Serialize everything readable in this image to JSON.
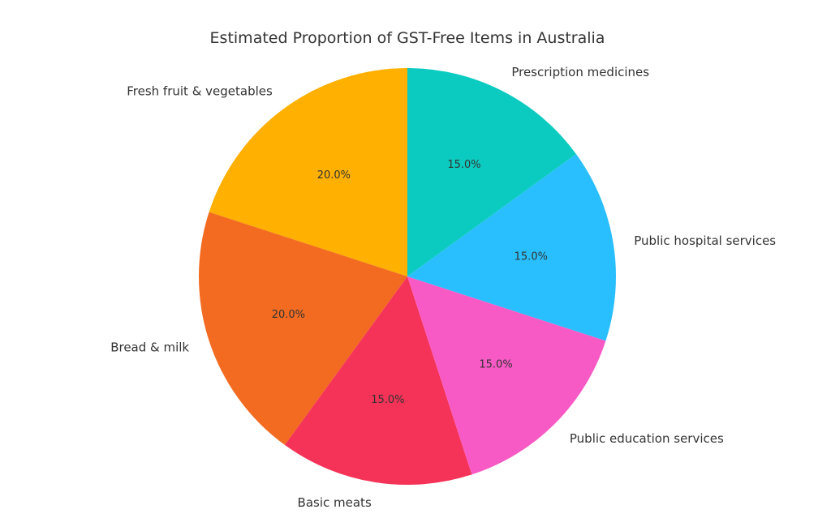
{
  "chart_data": {
    "type": "pie",
    "title": "Estimated Proportion of GST-Free Items in Australia",
    "start_angle_deg": 90,
    "direction": "counterclockwise",
    "categories": [
      "Fresh fruit & vegetables",
      "Bread & milk",
      "Basic meats",
      "Public education services",
      "Public hospital services",
      "Prescription medicines"
    ],
    "values": [
      20,
      20,
      15,
      15,
      15,
      15
    ],
    "value_labels": [
      "20.0%",
      "20.0%",
      "15.0%",
      "15.0%",
      "15.0%",
      "15.0%"
    ],
    "colors": [
      "#FFB000",
      "#F26B21",
      "#F53358",
      "#F75AC5",
      "#29BFFF",
      "#0BCBC0"
    ],
    "legend": "none"
  }
}
